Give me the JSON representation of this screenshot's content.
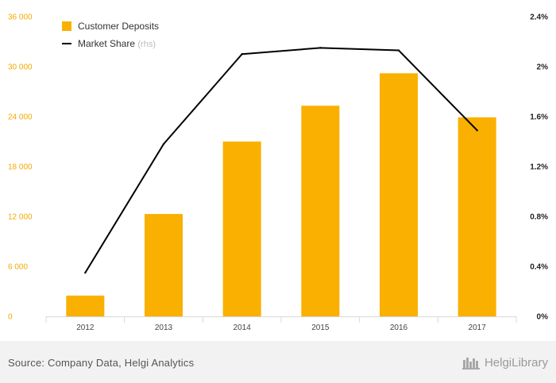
{
  "chart_data": {
    "type": "bar",
    "categories": [
      "2012",
      "2013",
      "2014",
      "2015",
      "2016",
      "2017"
    ],
    "series": [
      {
        "name": "Customer Deposits",
        "type": "bar",
        "axis": "left",
        "color": "#f9b000",
        "values": [
          2500,
          12300,
          21000,
          25300,
          29200,
          23900
        ]
      },
      {
        "name": "Market Share",
        "type": "line",
        "axis": "right",
        "color": "#000000",
        "values": [
          0.35,
          1.38,
          2.1,
          2.15,
          2.13,
          1.49
        ]
      }
    ],
    "left_axis": {
      "ylim": [
        0,
        36000
      ],
      "ticks": [
        "0",
        "6 000",
        "12 000",
        "18 000",
        "24 000",
        "30 000",
        "36 000"
      ]
    },
    "right_axis": {
      "ylim": [
        0,
        2.4
      ],
      "ticks": [
        "0%",
        "0.4%",
        "0.8%",
        "1.2%",
        "1.6%",
        "2%",
        "2.4%"
      ]
    },
    "legend": {
      "position": "top-left",
      "line_suffix": "(rhs)"
    },
    "grid": false
  },
  "footer": {
    "source": "Source: Company Data, Helgi Analytics",
    "brand": "HelgiLibrary",
    "brand_icon": "helgi-library-logo-icon"
  }
}
